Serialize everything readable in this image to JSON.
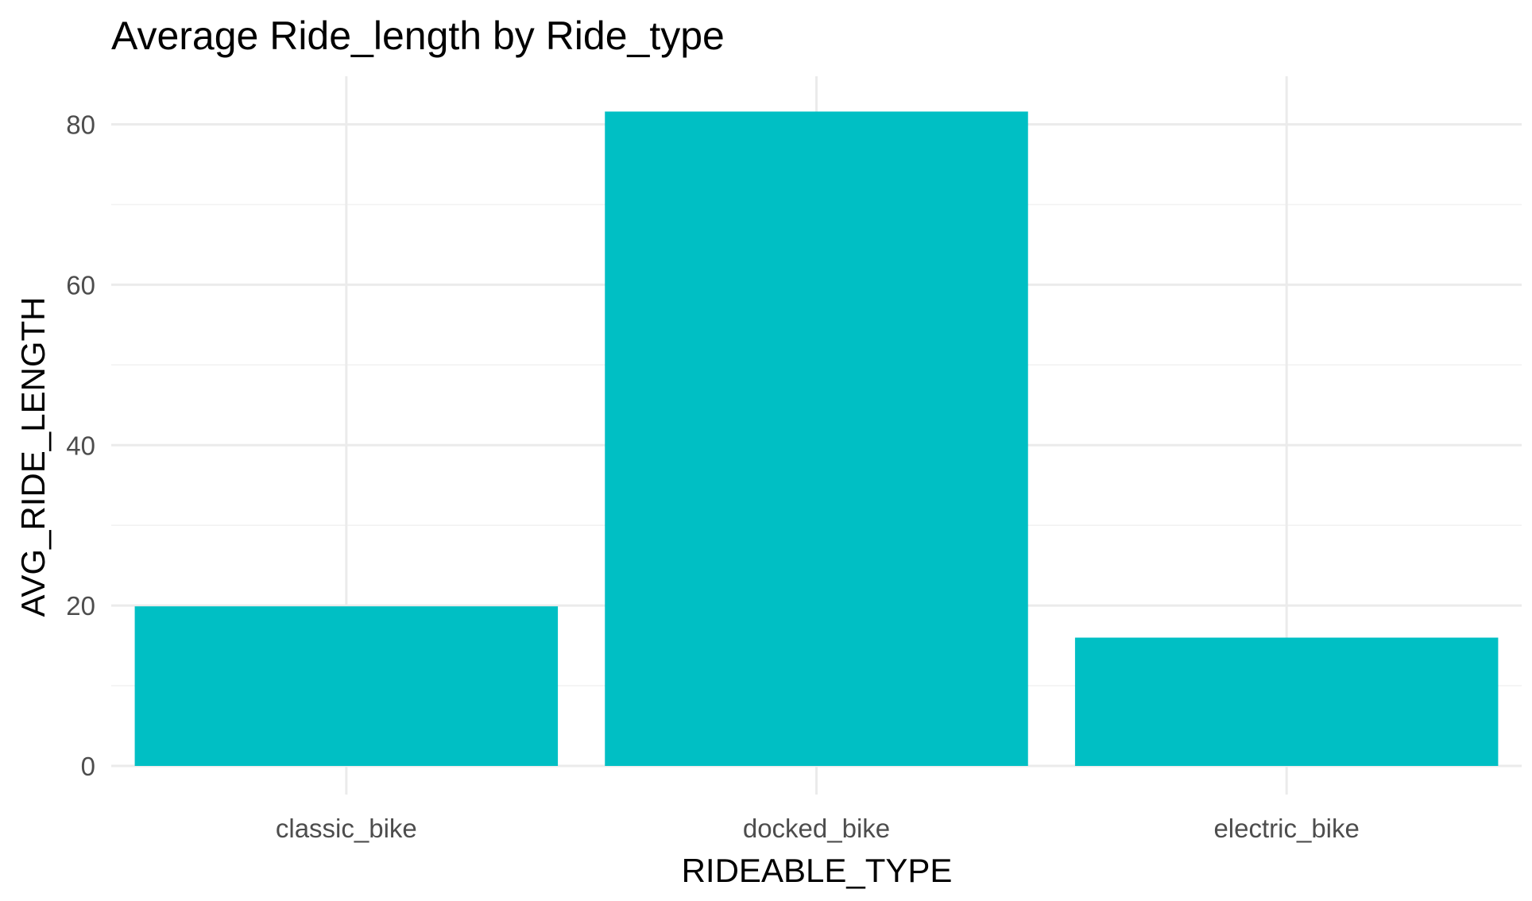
{
  "chart_data": {
    "type": "bar",
    "title": "Average Ride_length by Ride_type",
    "xlabel": "RIDEABLE_TYPE",
    "ylabel": "AVG_RIDE_LENGTH",
    "categories": [
      "classic_bike",
      "docked_bike",
      "electric_bike"
    ],
    "values": [
      19.9,
      81.6,
      16.0
    ],
    "ylim": [
      0,
      86
    ],
    "yticks": [
      "0",
      "20",
      "40",
      "60",
      "80"
    ],
    "grid": true,
    "bar_color": "#00BFC4",
    "gridline_color": "#EBEBEB"
  }
}
